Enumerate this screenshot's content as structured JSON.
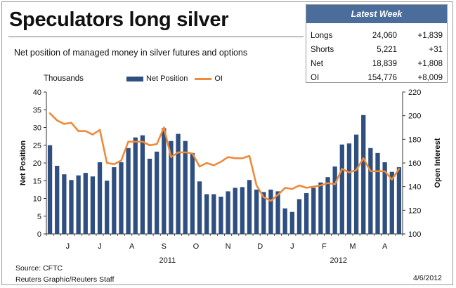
{
  "title": "Speculators long silver",
  "subtitle": "Net position of managed money in silver futures and options",
  "units_label": "Thousands",
  "legend": {
    "bar": "Net Position",
    "line": "OI"
  },
  "latest_week": {
    "header": "Latest Week",
    "rows": [
      {
        "label": "Longs",
        "value": "24,060",
        "change": "+1,839"
      },
      {
        "label": "Shorts",
        "value": "5,221",
        "change": "+31"
      },
      {
        "label": "Net",
        "value": "18,839",
        "change": "+1,808"
      },
      {
        "label": "OI",
        "value": "154,776",
        "change": "+8,009"
      }
    ]
  },
  "source": "Source: CFTC",
  "credit": "Reuters Graphic/Reuters Staff",
  "date": "4/6/2012",
  "colors": {
    "bar": "#2e4f7f",
    "line": "#ee8a3a",
    "header": "#4a6d9c"
  },
  "chart_data": {
    "type": "bar",
    "x_axis_label_left": "Net Position",
    "y_axis_label_right": "Open Interest",
    "ylim_left": [
      0,
      40
    ],
    "yticks_left": [
      0,
      5,
      10,
      15,
      20,
      25,
      30,
      35,
      40
    ],
    "ylim_right": [
      100,
      220
    ],
    "yticks_right": [
      100,
      120,
      140,
      160,
      180,
      200,
      220
    ],
    "month_labels": [
      {
        "label": "J",
        "week": 3
      },
      {
        "label": "J",
        "week": 7.5
      },
      {
        "label": "A",
        "week": 12
      },
      {
        "label": "S",
        "week": 16.5
      },
      {
        "label": "O",
        "week": 21
      },
      {
        "label": "N",
        "week": 25.5
      },
      {
        "label": "D",
        "week": 30
      },
      {
        "label": "J",
        "week": 34.5
      },
      {
        "label": "F",
        "week": 39
      },
      {
        "label": "M",
        "week": 43
      },
      {
        "label": "A",
        "week": 47.5
      }
    ],
    "year_labels": [
      {
        "label": "2011",
        "week": 17
      },
      {
        "label": "2012",
        "week": 41
      }
    ],
    "series": [
      {
        "name": "Net Position",
        "kind": "bar",
        "values": [
          25,
          19.2,
          16.8,
          15.2,
          16.5,
          17.2,
          16.2,
          20.2,
          15,
          18.8,
          20.2,
          24.2,
          27.2,
          27.8,
          21.2,
          23.2,
          29.8,
          26.2,
          28.2,
          26.2,
          22.8,
          14.8,
          11.2,
          11.2,
          10.5,
          12,
          13,
          13.2,
          15.2,
          12.5,
          11.8,
          12.5,
          12,
          7.2,
          6.2,
          9.8,
          11.5,
          13,
          14.5,
          16,
          19,
          25.2,
          25.5,
          28,
          33.5,
          24.2,
          22.8,
          20.2,
          17.5,
          18.8
        ]
      },
      {
        "name": "OI",
        "kind": "line",
        "values": [
          202,
          196,
          193,
          194,
          187,
          187,
          184,
          188,
          160,
          159,
          162,
          178,
          178,
          178,
          175,
          176,
          190,
          165,
          169,
          169,
          168,
          157,
          160,
          158,
          161,
          165,
          164,
          164,
          166,
          141,
          131,
          128,
          133,
          139,
          138,
          141,
          139,
          140,
          141,
          143,
          142,
          155,
          152,
          154,
          164,
          153,
          153,
          153,
          146,
          155
        ]
      }
    ]
  }
}
